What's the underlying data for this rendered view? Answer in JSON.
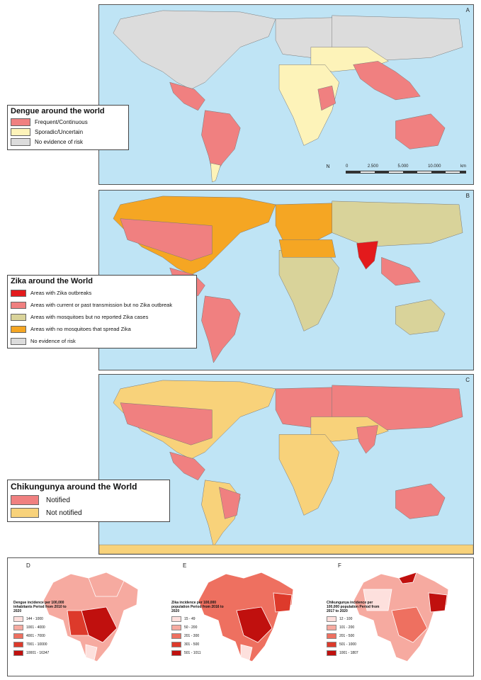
{
  "dengue": {
    "letter": "A",
    "title": "Dengue around the world",
    "legend": [
      {
        "label": "Frequent/Continuous",
        "color": "#f08080"
      },
      {
        "label": "Sporadic/Uncertain",
        "color": "#fdf3b9"
      },
      {
        "label": "No evidence of risk",
        "color": "#dcdcdc"
      }
    ],
    "scale": {
      "labels": [
        "0",
        "2.500",
        "5.000",
        "10.000"
      ],
      "unit": "km",
      "north": "N"
    }
  },
  "zika": {
    "letter": "B",
    "title": "Zika around the World",
    "legend": [
      {
        "label": "Areas with Zika outbreaks",
        "color": "#e31a1c"
      },
      {
        "label": "Areas with current or past transmission but no Zika outbreak",
        "color": "#f08080"
      },
      {
        "label": "Areas with mosquitoes but no reported Zika cases",
        "color": "#d9d39a"
      },
      {
        "label": "Areas with no mosquitoes that spread Zika",
        "color": "#f5a623"
      },
      {
        "label": "No evidence of risk",
        "color": "#dcdcdc"
      }
    ]
  },
  "chikungunya": {
    "letter": "C",
    "title": "Chikungunya around the World",
    "legend": [
      {
        "label": "Notified",
        "color": "#f08080"
      },
      {
        "label": "Not notified",
        "color": "#f8d27a"
      }
    ]
  },
  "brazil": [
    {
      "letter": "D",
      "title": "Dengue incidence per 100,000 inhabitants Period from 2010 to 2020",
      "legend": [
        {
          "label": "144 - 1000",
          "color": "#fde0dd"
        },
        {
          "label": "1001 - 4000",
          "color": "#f6aaa0"
        },
        {
          "label": "4001 - 7000",
          "color": "#ee7060"
        },
        {
          "label": "7001 - 10000",
          "color": "#dd3a2b"
        },
        {
          "label": "10001 - 16347",
          "color": "#c0100e"
        }
      ]
    },
    {
      "letter": "E",
      "title": "Zika incidence per 100,000 population Period from 2016 to 2020",
      "legend": [
        {
          "label": "15 - 49",
          "color": "#fde0dd"
        },
        {
          "label": "50 - 200",
          "color": "#f6aaa0"
        },
        {
          "label": "201 - 300",
          "color": "#ee7060"
        },
        {
          "label": "301 - 500",
          "color": "#dd3a2b"
        },
        {
          "label": "501 - 1011",
          "color": "#c0100e"
        }
      ]
    },
    {
      "letter": "F",
      "title": "Chikungunya incidence per 100,000 population Period from 2017 to 2020",
      "legend": [
        {
          "label": "12 - 100",
          "color": "#fde0dd"
        },
        {
          "label": "101 - 200",
          "color": "#f6aaa0"
        },
        {
          "label": "201 - 500",
          "color": "#ee7060"
        },
        {
          "label": "501 - 1000",
          "color": "#dd3a2b"
        },
        {
          "label": "1001 - 1807",
          "color": "#c0100e"
        }
      ]
    }
  ]
}
